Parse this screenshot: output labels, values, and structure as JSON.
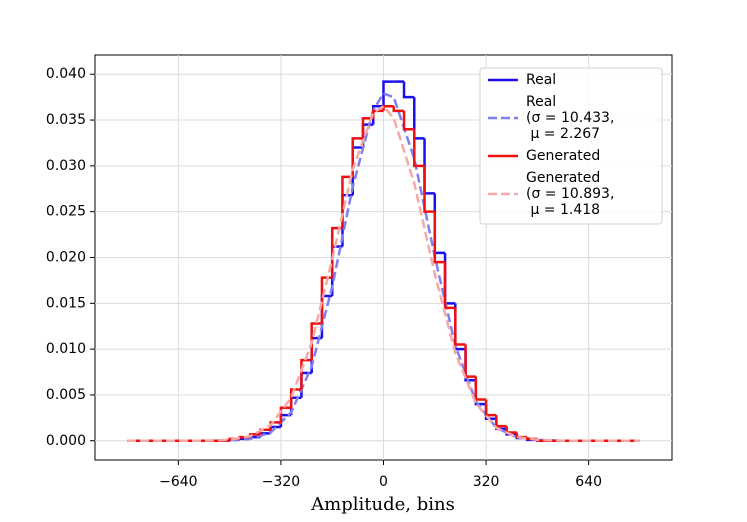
{
  "chart_data": {
    "type": "histogram",
    "x_label": "Amplitude, bins",
    "xlim": [
      -900,
      900
    ],
    "ylim": [
      -0.0021,
      0.0421
    ],
    "xticks": [
      {
        "value": -640,
        "label": "−640"
      },
      {
        "value": -320,
        "label": "−320"
      },
      0,
      320,
      640
    ],
    "yticks": [
      {
        "value": 0,
        "label": "0.000"
      },
      {
        "value": 0.005,
        "label": "0.005"
      },
      {
        "value": 0.01,
        "label": "0.010"
      },
      {
        "value": 0.015,
        "label": "0.015"
      },
      {
        "value": 0.02,
        "label": "0.020"
      },
      {
        "value": 0.025,
        "label": "0.025"
      },
      {
        "value": 0.03,
        "label": "0.030"
      },
      {
        "value": 0.035,
        "label": "0.035"
      },
      {
        "value": 0.04,
        "label": "0.040"
      }
    ],
    "grid": true,
    "legend_position": "upper right",
    "bins": [
      -800,
      -480,
      -448,
      -416,
      -384,
      -352,
      -320,
      -288,
      -256,
      -224,
      -192,
      -160,
      -128,
      -96,
      -64,
      -32,
      0,
      32,
      64,
      96,
      128,
      160,
      192,
      224,
      256,
      288,
      320,
      352,
      384,
      416,
      448,
      480,
      800
    ],
    "series": [
      {
        "name": "Real",
        "color": "#1a0ff0",
        "style": "step",
        "values": [
          0,
          0.0001,
          0.0002,
          0.0004,
          0.0008,
          0.0015,
          0.0028,
          0.0047,
          0.0074,
          0.0112,
          0.0158,
          0.0212,
          0.0268,
          0.032,
          0.0345,
          0.0365,
          0.0392,
          0.0392,
          0.0375,
          0.033,
          0.027,
          0.0205,
          0.015,
          0.01,
          0.0066,
          0.004,
          0.0024,
          0.0013,
          0.0007,
          0.0003,
          0.0001,
          0
        ]
      },
      {
        "name": "Real\n(σ = 10.433,\n μ = 2.267",
        "color": "#7f7ff2",
        "style": "dashed",
        "x": [
          -800,
          -640,
          -560,
          -480,
          -416,
          -352,
          -288,
          -224,
          -160,
          -96,
          -32,
          0,
          32,
          96,
          160,
          224,
          288,
          352,
          416,
          480,
          560,
          640,
          800
        ],
        "values": [
          0,
          0,
          0,
          4e-05,
          0.0002,
          0.0009,
          0.0031,
          0.0081,
          0.0168,
          0.0277,
          0.0361,
          0.0379,
          0.0375,
          0.0308,
          0.0201,
          0.0104,
          0.0043,
          0.0014,
          0.0004,
          0.0001,
          0,
          0,
          0
        ]
      },
      {
        "name": "Generated",
        "color": "#f01010",
        "style": "step",
        "values": [
          0,
          0.0002,
          0.0004,
          0.0007,
          0.0012,
          0.002,
          0.0036,
          0.0056,
          0.0088,
          0.0128,
          0.0178,
          0.0232,
          0.0288,
          0.033,
          0.0352,
          0.036,
          0.0365,
          0.036,
          0.034,
          0.03,
          0.025,
          0.0195,
          0.0145,
          0.0105,
          0.007,
          0.0045,
          0.0028,
          0.0016,
          0.0009,
          0.0004,
          0.0002,
          0
        ]
      },
      {
        "name": "Generated\n(σ = 10.893,\n μ = 1.418",
        "color": "#f7a8a8",
        "style": "dashed",
        "x": [
          -800,
          -640,
          -560,
          -480,
          -416,
          -352,
          -288,
          -224,
          -160,
          -96,
          -32,
          0,
          32,
          96,
          160,
          224,
          288,
          352,
          416,
          480,
          560,
          640,
          800
        ],
        "values": [
          0,
          0,
          0,
          0.0001,
          0.0005,
          0.0017,
          0.0047,
          0.0107,
          0.0198,
          0.0296,
          0.0358,
          0.0365,
          0.0352,
          0.0281,
          0.0182,
          0.0096,
          0.0041,
          0.0014,
          0.0004,
          0.0001,
          0,
          0,
          0
        ]
      }
    ]
  }
}
